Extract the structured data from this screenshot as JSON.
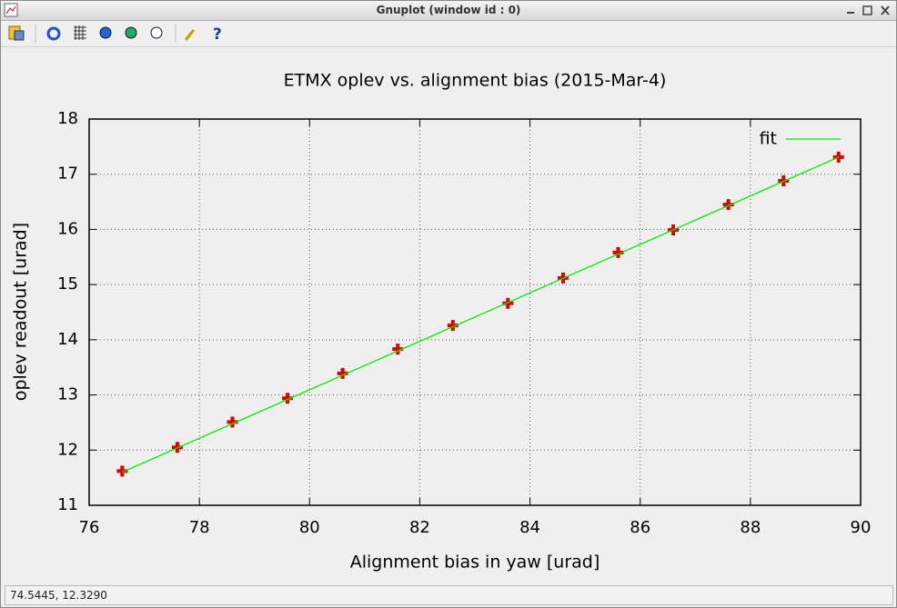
{
  "window": {
    "title": "Gnuplot (window id : 0)"
  },
  "status_bar": "74.5445,  12.3290",
  "chart_data": {
    "type": "scatter",
    "title": "ETMX oplev vs. alignment bias (2015-Mar-4)",
    "x_label": "Alignment bias in yaw [urad]",
    "y_label": "oplev readout [urad]",
    "xlim": [
      76,
      90
    ],
    "ylim": [
      11,
      18
    ],
    "xticks": [
      76,
      78,
      80,
      82,
      84,
      86,
      88,
      90
    ],
    "yticks": [
      11,
      12,
      13,
      14,
      15,
      16,
      17,
      18
    ],
    "grid": true,
    "legend": "top-right",
    "series": [
      {
        "style": "points",
        "color": "#dd0000",
        "x": [
          76.6,
          77.6,
          78.6,
          79.6,
          80.6,
          81.6,
          82.6,
          83.6,
          84.6,
          85.6,
          86.6,
          87.6,
          88.6,
          89.6
        ],
        "values": [
          11.62,
          12.05,
          12.51,
          12.94,
          13.39,
          13.83,
          14.26,
          14.66,
          15.12,
          15.58,
          15.99,
          16.45,
          16.88,
          17.31
        ]
      },
      {
        "name": "fit",
        "style": "line",
        "color": "#00ee00",
        "x": [
          76.6,
          89.6
        ],
        "values": [
          11.6,
          17.31
        ]
      }
    ]
  }
}
